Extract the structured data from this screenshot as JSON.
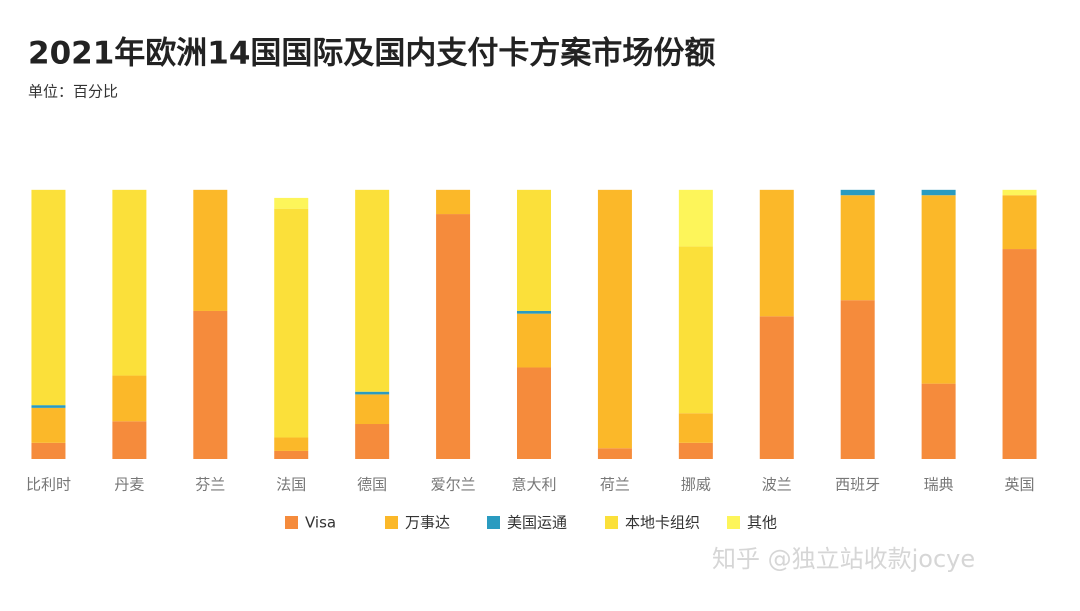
{
  "chart_data": {
    "type": "stacked_bar",
    "title": "2021年欧洲14国国际及国内支付卡方案市场份额",
    "subtitle": "单位：百分比",
    "categories": [
      "比利时",
      "丹麦",
      "芬兰",
      "法国",
      "德国",
      "爱尔兰",
      "意大利",
      "荷兰",
      "挪威",
      "波兰",
      "西班牙",
      "瑞典",
      "英国"
    ],
    "series": [
      {
        "name": "Visa",
        "color": "#f58b3c",
        "values": [
          6,
          14,
          55,
          3,
          13,
          91,
          34,
          4,
          6,
          53,
          59,
          28,
          78
        ]
      },
      {
        "name": "万事达",
        "color": "#fbb829",
        "values": [
          13,
          17,
          45,
          5,
          11,
          9,
          20,
          96,
          11,
          47,
          39,
          70,
          20
        ]
      },
      {
        "name": "美国运通",
        "color": "#2a9bc0",
        "values": [
          1,
          0,
          0,
          0,
          1,
          0,
          1,
          0,
          0,
          0,
          2,
          2,
          0
        ]
      },
      {
        "name": "本地卡组织",
        "color": "#fbe03a",
        "values": [
          80,
          69,
          0,
          85,
          75,
          0,
          45,
          0,
          62,
          0,
          0,
          0,
          0
        ]
      },
      {
        "name": "其他",
        "color": "#fdf55a",
        "values": [
          0,
          0,
          0,
          4,
          0,
          0,
          0,
          0,
          21,
          0,
          0,
          0,
          2
        ]
      }
    ],
    "ylim": [
      0,
      120
    ],
    "watermark": "知乎 @独立站收款jocye"
  }
}
